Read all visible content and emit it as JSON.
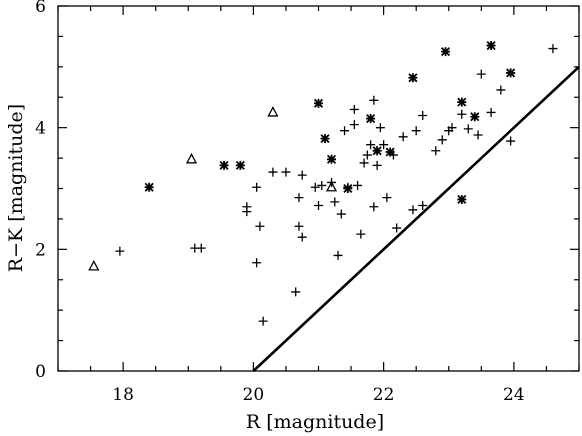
{
  "chart_data": {
    "type": "scatter",
    "xlabel": "R [magnitude]",
    "ylabel": "R−K [magnitude]",
    "xlim": [
      17,
      25
    ],
    "ylim": [
      0,
      6
    ],
    "x_ticks": [
      18,
      20,
      22,
      24
    ],
    "y_ticks": [
      0,
      2,
      4,
      6
    ],
    "x_tick_labels": [
      "18",
      "20",
      "22",
      "24"
    ],
    "y_tick_labels": [
      "0",
      "2",
      "4",
      "6"
    ],
    "grid": false,
    "legend": "none",
    "series": [
      {
        "marker": "plus",
        "points": [
          [
            17.95,
            1.97
          ],
          [
            19.1,
            2.02
          ],
          [
            19.2,
            2.02
          ],
          [
            19.9,
            2.62
          ],
          [
            19.9,
            2.7
          ],
          [
            20.05,
            3.02
          ],
          [
            20.05,
            1.78
          ],
          [
            20.1,
            2.38
          ],
          [
            20.15,
            0.82
          ],
          [
            20.3,
            3.27
          ],
          [
            20.5,
            3.27
          ],
          [
            20.65,
            1.3
          ],
          [
            20.7,
            2.38
          ],
          [
            20.7,
            2.85
          ],
          [
            20.75,
            2.2
          ],
          [
            20.75,
            3.22
          ],
          [
            20.95,
            3.02
          ],
          [
            21.0,
            2.72
          ],
          [
            21.05,
            3.05
          ],
          [
            21.2,
            3.1
          ],
          [
            21.25,
            2.78
          ],
          [
            21.3,
            1.9
          ],
          [
            21.35,
            2.58
          ],
          [
            21.4,
            3.95
          ],
          [
            21.45,
            3.02
          ],
          [
            21.55,
            4.05
          ],
          [
            21.55,
            4.3
          ],
          [
            21.6,
            3.05
          ],
          [
            21.65,
            2.25
          ],
          [
            21.7,
            3.42
          ],
          [
            21.75,
            3.55
          ],
          [
            21.8,
            3.72
          ],
          [
            21.85,
            4.45
          ],
          [
            21.85,
            2.7
          ],
          [
            21.9,
            3.62
          ],
          [
            21.9,
            3.38
          ],
          [
            21.95,
            4.0
          ],
          [
            22.0,
            3.72
          ],
          [
            22.05,
            2.85
          ],
          [
            22.15,
            3.55
          ],
          [
            22.2,
            2.35
          ],
          [
            22.3,
            3.85
          ],
          [
            22.45,
            2.65
          ],
          [
            22.5,
            3.95
          ],
          [
            22.6,
            4.2
          ],
          [
            22.6,
            2.72
          ],
          [
            22.8,
            3.62
          ],
          [
            22.9,
            3.8
          ],
          [
            23.0,
            3.95
          ],
          [
            23.05,
            4.0
          ],
          [
            23.2,
            4.22
          ],
          [
            23.3,
            3.98
          ],
          [
            23.45,
            3.88
          ],
          [
            23.5,
            4.88
          ],
          [
            23.65,
            4.25
          ],
          [
            23.8,
            4.62
          ],
          [
            23.95,
            3.78
          ],
          [
            24.6,
            5.3
          ]
        ]
      },
      {
        "marker": "asterisk",
        "points": [
          [
            18.4,
            3.02
          ],
          [
            19.55,
            3.38
          ],
          [
            19.8,
            3.38
          ],
          [
            21.0,
            4.4
          ],
          [
            21.1,
            3.82
          ],
          [
            21.2,
            3.48
          ],
          [
            21.45,
            3.0
          ],
          [
            21.8,
            4.15
          ],
          [
            21.9,
            3.62
          ],
          [
            22.1,
            3.6
          ],
          [
            22.45,
            4.82
          ],
          [
            22.95,
            5.25
          ],
          [
            23.2,
            4.42
          ],
          [
            23.2,
            2.82
          ],
          [
            23.4,
            4.18
          ],
          [
            23.65,
            5.35
          ],
          [
            23.95,
            4.9
          ]
        ]
      },
      {
        "marker": "triangle",
        "points": [
          [
            17.55,
            1.72
          ],
          [
            19.05,
            3.48
          ],
          [
            20.3,
            4.25
          ],
          [
            21.2,
            3.02
          ]
        ]
      }
    ],
    "line": {
      "x": [
        20.0,
        25.0
      ],
      "y": [
        0.0,
        5.0
      ]
    }
  }
}
